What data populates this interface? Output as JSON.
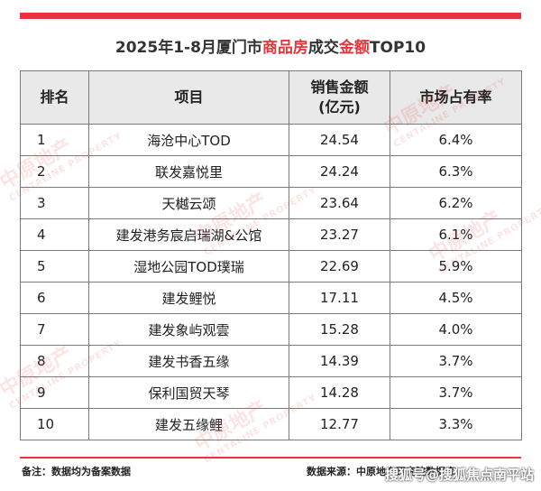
{
  "title": {
    "prefix": "2025年1-8月厦门市",
    "highlight1": "商品房",
    "middle": "成交",
    "highlight2": "金额",
    "suffix": "TOP10"
  },
  "table": {
    "headers": [
      "排名",
      "项目",
      "销售金额\n(亿元)",
      "市场占有率"
    ],
    "rows": [
      {
        "rank": "1",
        "project": "海沧中心TOD",
        "amount": "24.54",
        "share": "6.4%"
      },
      {
        "rank": "2",
        "project": "联发嘉悦里",
        "amount": "24.24",
        "share": "6.3%"
      },
      {
        "rank": "3",
        "project": "天樾云颂",
        "amount": "23.64",
        "share": "6.2%"
      },
      {
        "rank": "4",
        "project": "建发港务宸启瑞湖&公馆",
        "amount": "23.27",
        "share": "6.1%"
      },
      {
        "rank": "5",
        "project": "湿地公园TOD璞瑞",
        "amount": "22.69",
        "share": "5.9%"
      },
      {
        "rank": "6",
        "project": "建发鲤悦",
        "amount": "17.11",
        "share": "4.5%"
      },
      {
        "rank": "7",
        "project": "建发象屿观雲",
        "amount": "15.28",
        "share": "4.0%"
      },
      {
        "rank": "8",
        "project": "建发书香五缘",
        "amount": "14.39",
        "share": "3.7%"
      },
      {
        "rank": "9",
        "project": "保利国贸天琴",
        "amount": "14.28",
        "share": "3.7%"
      },
      {
        "rank": "10",
        "project": "建发五缘鲤",
        "amount": "12.77",
        "share": "3.3%"
      }
    ]
  },
  "notes": {
    "left": "备注：数据均为备案数据",
    "right": "数据来源：中原地产研究院数据库"
  },
  "watermark": {
    "brand": "中原地产",
    "brand_en": "CENTALINE PROPERTY",
    "footer": "搜狐号@搜狐焦点南平站"
  },
  "colors": {
    "accent": "#e8343a",
    "header_bg": "#e9e9e9"
  }
}
